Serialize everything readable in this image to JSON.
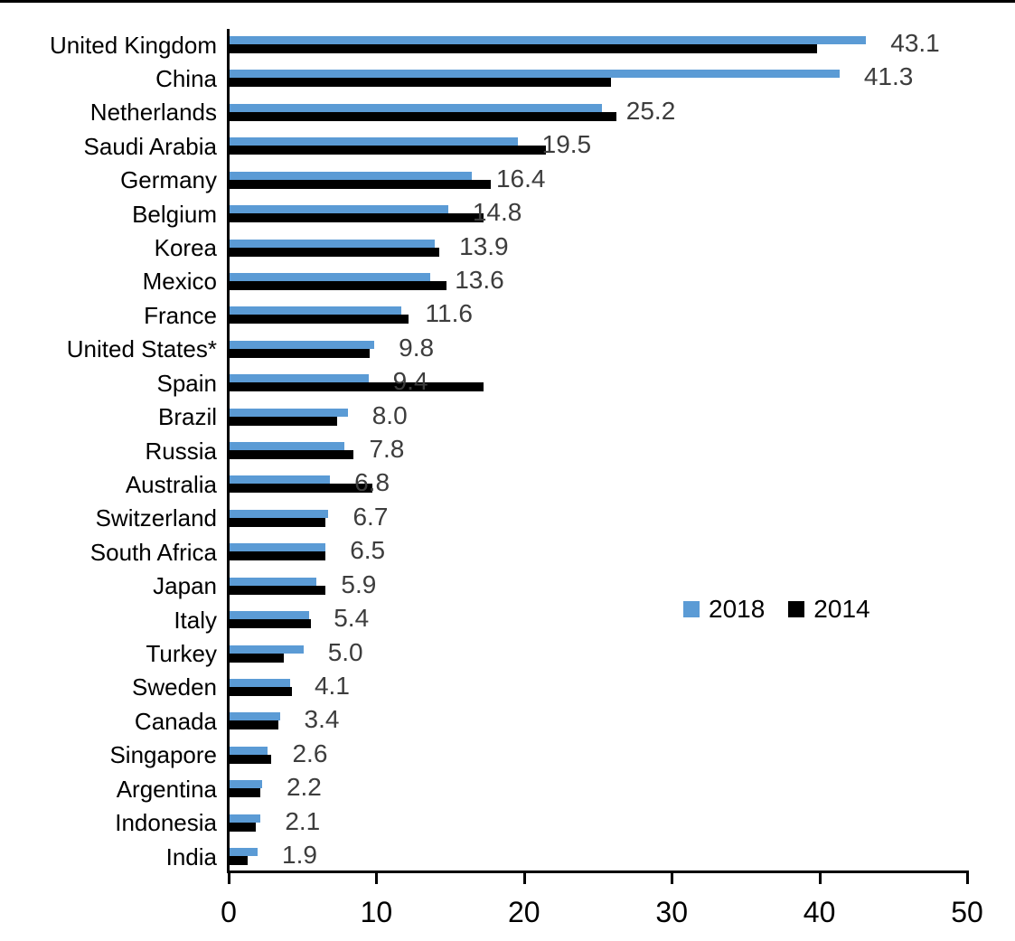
{
  "chart_data": {
    "type": "bar",
    "orientation": "horizontal",
    "title": "",
    "xlabel": "",
    "ylabel": "",
    "grid": false,
    "xlim": [
      0,
      50
    ],
    "x_ticks": [
      "0",
      "10",
      "20",
      "30",
      "40",
      "50"
    ],
    "categories": [
      "United Kingdom",
      "China",
      "Netherlands",
      "Saudi Arabia",
      "Germany",
      "Belgium",
      "Korea",
      "Mexico",
      "France",
      "United States*",
      "Spain",
      "Brazil",
      "Russia",
      "Australia",
      "Switzerland",
      "South Africa",
      "Japan",
      "Italy",
      "Turkey",
      "Sweden",
      "Canada",
      "Singapore",
      "Argentina",
      "Indonesia",
      "India"
    ],
    "series": [
      {
        "name": "2018",
        "color": "#5B9BD5",
        "values": [
          43.1,
          41.3,
          25.2,
          19.5,
          16.4,
          14.8,
          13.9,
          13.6,
          11.6,
          9.8,
          9.4,
          8.0,
          7.8,
          6.8,
          6.7,
          6.5,
          5.9,
          5.4,
          5.0,
          4.1,
          3.4,
          2.6,
          2.2,
          2.1,
          1.9
        ],
        "data_labels": [
          "43.1",
          "41.3",
          "25.2",
          "19.5",
          "16.4",
          "14.8",
          "13.9",
          "13.6",
          "11.6",
          "9.8",
          "9.4",
          "8.0",
          "7.8",
          "6.8",
          "6.7",
          "6.5",
          "5.9",
          "5.4",
          "5.0",
          "4.1",
          "3.4",
          "2.6",
          "2.2",
          "2.1",
          "1.9"
        ]
      },
      {
        "name": "2014",
        "color": "#000000",
        "values": [
          39.8,
          25.8,
          26.2,
          21.4,
          17.7,
          17.2,
          14.2,
          14.7,
          12.1,
          9.5,
          17.2,
          7.3,
          8.4,
          9.7,
          6.5,
          6.5,
          6.5,
          5.5,
          3.7,
          4.2,
          3.3,
          2.8,
          2.1,
          1.8,
          1.2
        ]
      }
    ],
    "legend": {
      "position": "center-right",
      "items": [
        {
          "label": "2018",
          "color": "#5B9BD5"
        },
        {
          "label": "2014",
          "color": "#000000"
        }
      ]
    }
  },
  "colors": {
    "bar_2018": "#5B9BD5",
    "bar_2014": "#000000",
    "data_label_text": "#3d3d3d",
    "axis": "#000000"
  }
}
